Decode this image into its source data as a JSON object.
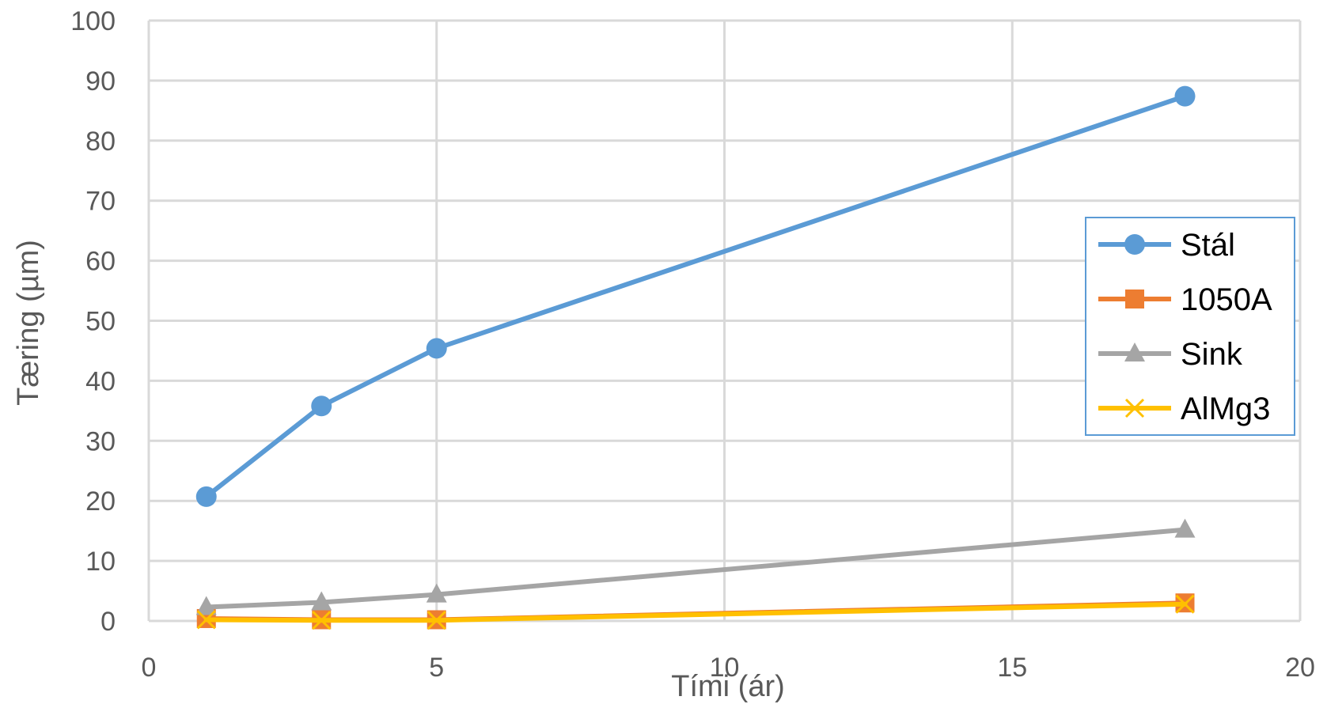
{
  "chart_data": {
    "type": "scatter",
    "title": "",
    "xlabel": "Tími (ár)",
    "ylabel": "Tæring (µm)",
    "xlim": [
      0,
      20
    ],
    "ylim": [
      0,
      100
    ],
    "xticks": [
      "0",
      "5",
      "10",
      "15",
      "20"
    ],
    "yticks": [
      "0",
      "10",
      "20",
      "30",
      "40",
      "50",
      "60",
      "70",
      "80",
      "90",
      "100"
    ],
    "grid": true,
    "legend_position": "right",
    "series": [
      {
        "name": "Stál",
        "color": "#5b9bd5",
        "marker": "circle",
        "x": [
          1,
          3,
          5,
          18
        ],
        "y": [
          20.7,
          35.8,
          45.4,
          87.4
        ]
      },
      {
        "name": "1050A",
        "color": "#ed7d31",
        "marker": "square",
        "x": [
          1,
          3,
          5,
          18
        ],
        "y": [
          0.4,
          0.2,
          0.2,
          3.0
        ]
      },
      {
        "name": "Sink",
        "color": "#a5a5a5",
        "marker": "triangle",
        "x": [
          1,
          3,
          5,
          18
        ],
        "y": [
          2.3,
          3.1,
          4.4,
          15.2
        ]
      },
      {
        "name": "AlMg3",
        "color": "#ffc000",
        "marker": "x",
        "x": [
          1,
          3,
          5,
          18
        ],
        "y": [
          0.2,
          0.1,
          0.1,
          2.8
        ]
      }
    ]
  }
}
